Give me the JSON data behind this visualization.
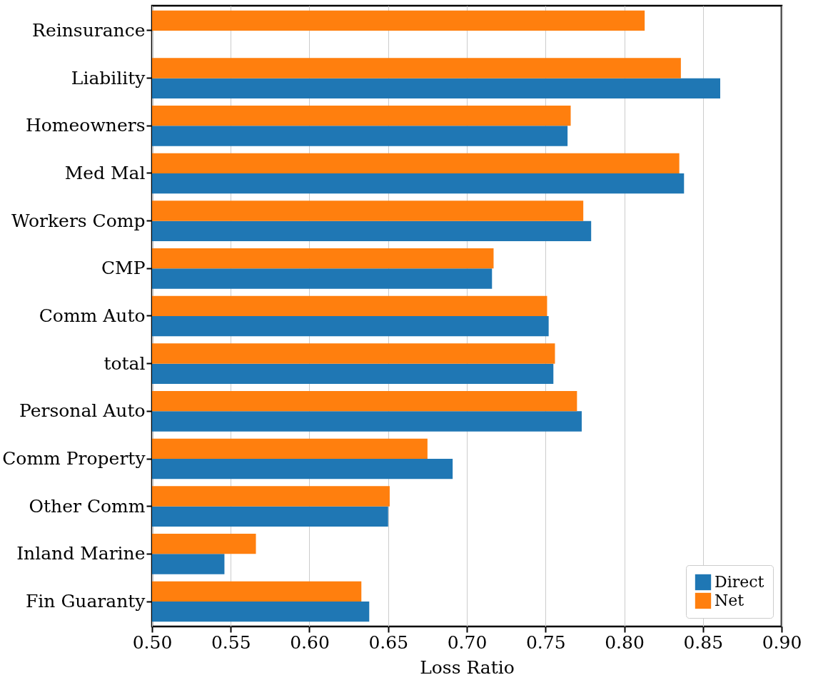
{
  "chart_data": {
    "type": "bar",
    "orientation": "horizontal",
    "xlabel": "Loss Ratio",
    "categories": [
      "Reinsurance",
      "Liability",
      "Homeowners",
      "Med Mal",
      "Workers Comp",
      "CMP",
      "Comm Auto",
      "total",
      "Personal Auto",
      "Comm Property",
      "Other Comm",
      "Inland Marine",
      "Fin Guaranty"
    ],
    "series": [
      {
        "name": "Direct",
        "color": "#1f77b4",
        "values": [
          null,
          0.861,
          0.764,
          0.838,
          0.779,
          0.716,
          0.752,
          0.755,
          0.773,
          0.691,
          0.65,
          0.546,
          0.638
        ]
      },
      {
        "name": "Net",
        "color": "#ff7f0e",
        "values": [
          0.813,
          0.836,
          0.766,
          0.835,
          0.774,
          0.717,
          0.751,
          0.756,
          0.77,
          0.675,
          0.651,
          0.566,
          0.633
        ]
      }
    ],
    "xlim": [
      0.5,
      0.9
    ],
    "xticks": [
      {
        "value": 0.5,
        "label": "0.50"
      },
      0.55,
      {
        "value": 0.6,
        "label": "0.60"
      },
      0.65,
      {
        "value": 0.7,
        "label": "0.70"
      },
      0.75,
      {
        "value": 0.8,
        "label": "0.80"
      },
      0.85,
      {
        "value": 0.9,
        "label": "0.90"
      }
    ],
    "grid": "x",
    "legend": "bottom right"
  }
}
